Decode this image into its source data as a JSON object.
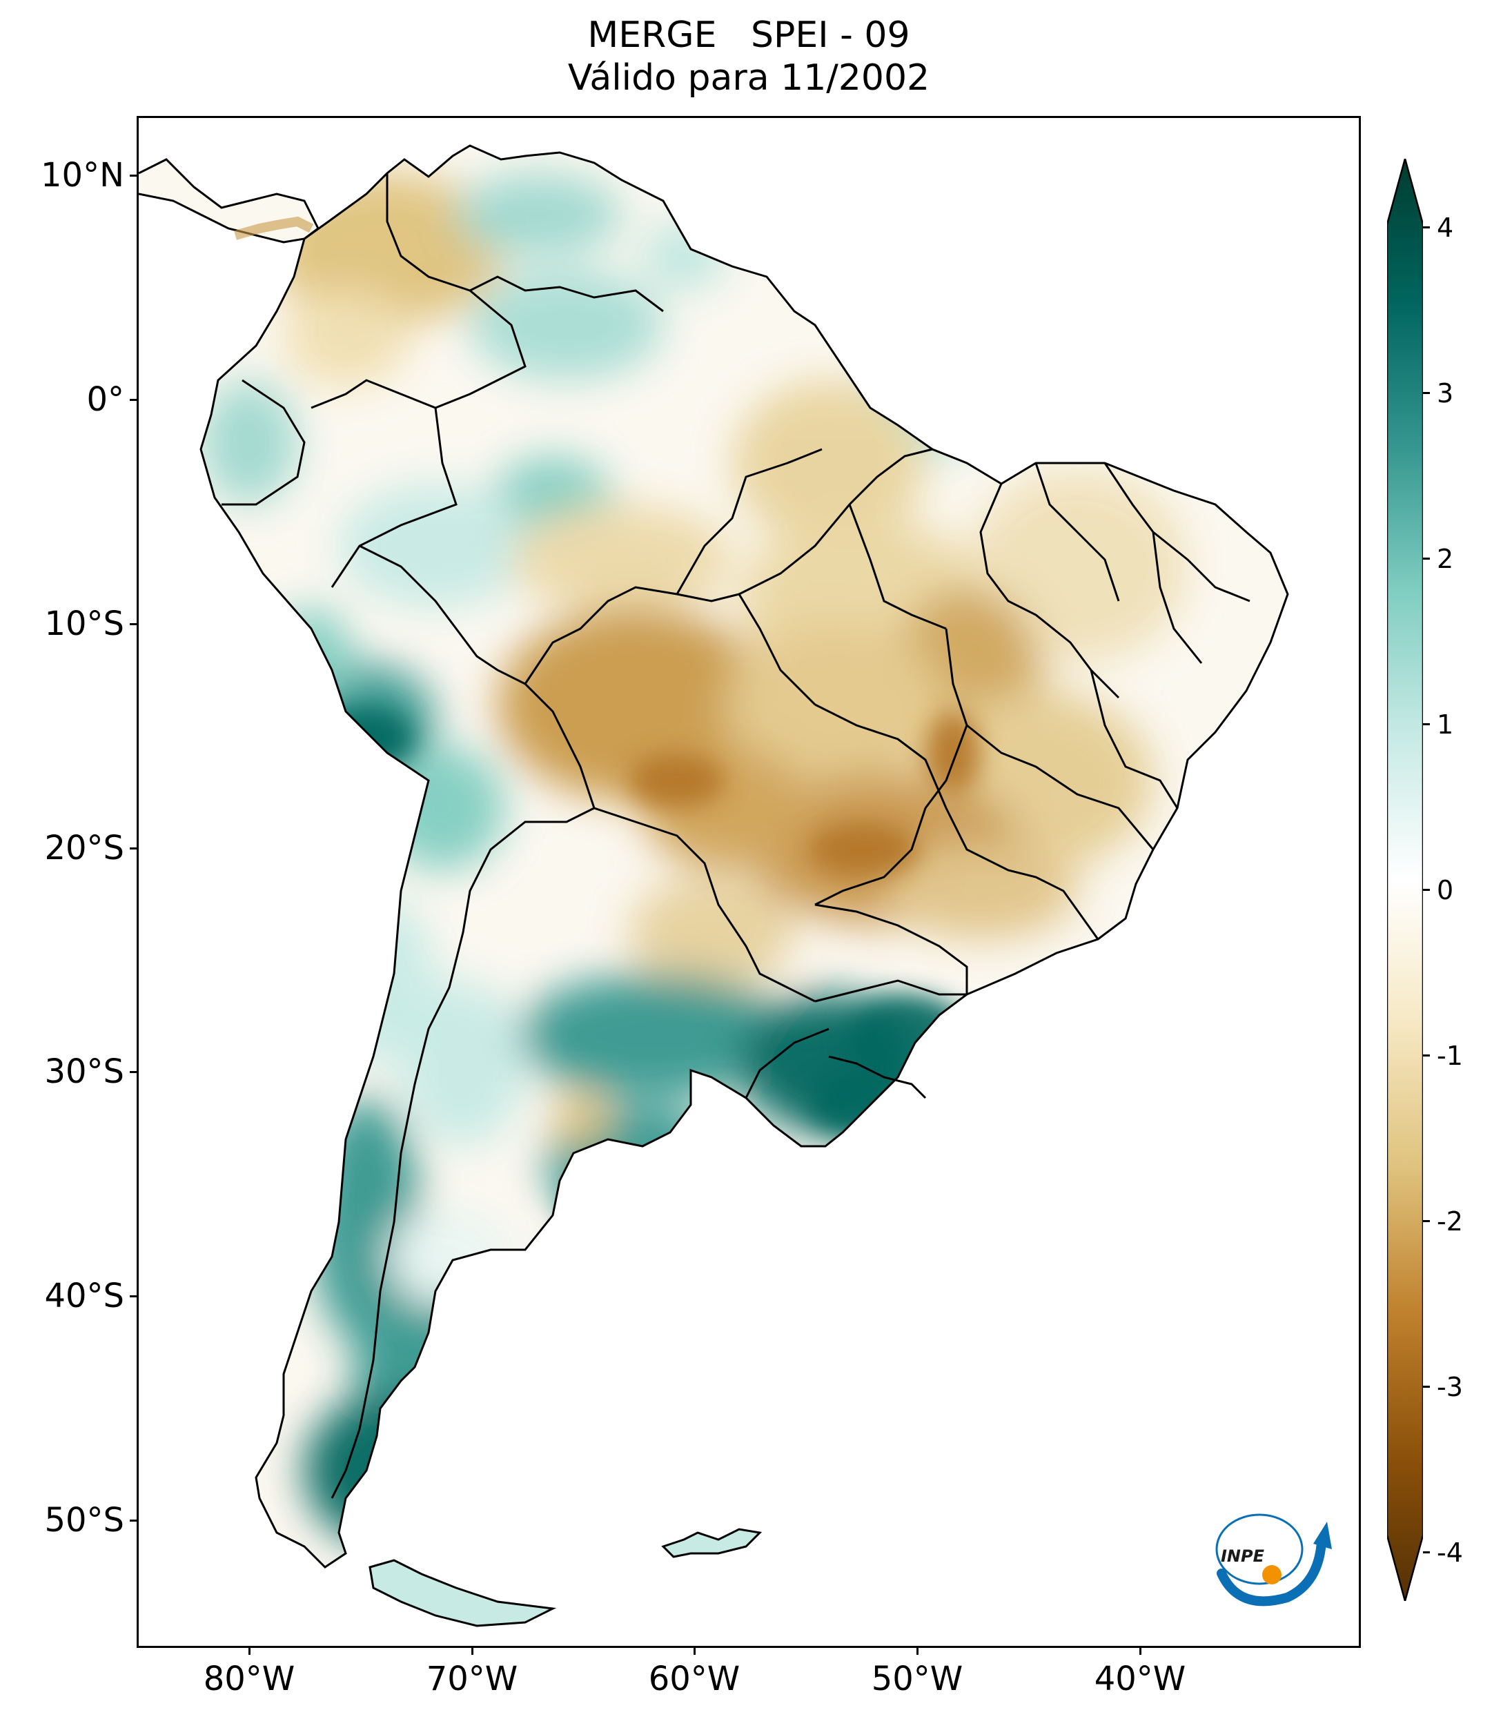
{
  "title": {
    "line1": "MERGE   SPEI - 09",
    "line2": "Válido para 11/2002"
  },
  "map": {
    "region": "South America",
    "variable": "SPEI - 09",
    "lon_range": [
      -85,
      -30
    ],
    "lat_range": [
      -56,
      13
    ],
    "y_ticks": [
      {
        "label": "10°N",
        "lat": 10
      },
      {
        "label": "0°",
        "lat": 0
      },
      {
        "label": "10°S",
        "lat": -10
      },
      {
        "label": "20°S",
        "lat": -20
      },
      {
        "label": "30°S",
        "lat": -30
      },
      {
        "label": "40°S",
        "lat": -40
      },
      {
        "label": "50°S",
        "lat": -50
      }
    ],
    "x_ticks": [
      {
        "label": "80°W",
        "lon": -80
      },
      {
        "label": "70°W",
        "lon": -70
      },
      {
        "label": "60°W",
        "lon": -60
      },
      {
        "label": "50°W",
        "lon": -50
      },
      {
        "label": "40°W",
        "lon": -40
      }
    ]
  },
  "colorbar": {
    "min": -4,
    "max": 4,
    "extend": "both",
    "labels": [
      "4",
      "3",
      "2",
      "1",
      "0",
      "-1",
      "-2",
      "-3",
      "-4"
    ],
    "colors": {
      "dry_extreme": "#543005",
      "dry_strong": "#8c510a",
      "dry_moderate": "#bf812d",
      "dry_mild": "#dfc27d",
      "dry_light": "#f6e8c3",
      "neutral": "#ffffff",
      "wet_light": "#c7eae5",
      "wet_mild": "#80cdc1",
      "wet_moderate": "#35978f",
      "wet_strong": "#01665e",
      "wet_extreme": "#003c30"
    }
  },
  "logo": {
    "text": "INPE",
    "icon": "inpe-logo-icon",
    "accent_blue": "#0a6fb5",
    "accent_orange": "#f39200"
  }
}
